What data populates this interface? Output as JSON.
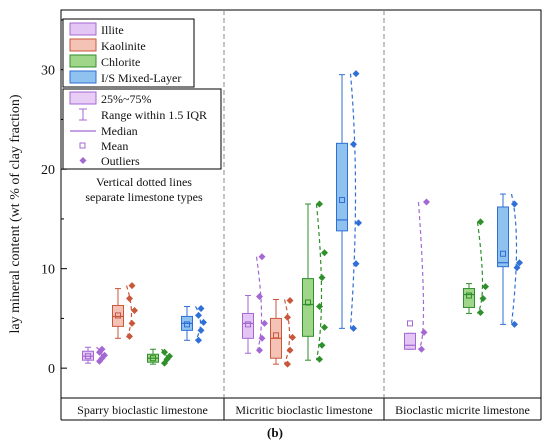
{
  "figure_label": "(b)",
  "chart_data": {
    "type": "box",
    "ylabel": "lay mineral content (wt % of clay fraction)",
    "ylim": [
      -3,
      36
    ],
    "yticks": [
      0,
      10,
      20,
      30
    ],
    "groups": [
      "Sparry bioclastic limestone",
      "Micritic bioclastic limestone",
      "Bioclastic micrite limestone"
    ],
    "series_legend": [
      {
        "name": "Illite",
        "fill": "#e3c6f3",
        "stroke": "#a468d4"
      },
      {
        "name": "Kaolinite",
        "fill": "#f5c3b6",
        "stroke": "#c9573b"
      },
      {
        "name": "Chlorite",
        "fill": "#9fd68a",
        "stroke": "#2f8f2a"
      },
      {
        "name": "I/S Mixed-Layer",
        "fill": "#8fc2ef",
        "stroke": "#2f6fd6"
      }
    ],
    "legend_items": {
      "box": "25%~75%",
      "whisker": "Range within 1.5 IQR",
      "median": "Median",
      "mean": "Mean",
      "outliers": "Outliers"
    },
    "annotation": [
      "Vertical dotted lines",
      "separate limestone types"
    ],
    "boxes": [
      {
        "group": 0,
        "series": 0,
        "q1": 0.8,
        "median": 1.2,
        "q3": 1.7,
        "mean": 1.2,
        "wlo": 0.5,
        "whi": 2.1,
        "points": [
          0.7,
          1.0,
          1.3,
          1.6,
          1.9
        ]
      },
      {
        "group": 0,
        "series": 1,
        "q1": 4.2,
        "median": 5.2,
        "q3": 6.3,
        "mean": 5.3,
        "wlo": 3.0,
        "whi": 8.0,
        "points": [
          3.2,
          4.5,
          5.8,
          7.0,
          8.3
        ]
      },
      {
        "group": 0,
        "series": 2,
        "q1": 0.6,
        "median": 1.0,
        "q3": 1.4,
        "mean": 1.0,
        "wlo": 0.4,
        "whi": 1.9,
        "points": [
          0.5,
          0.9,
          1.2,
          1.6
        ]
      },
      {
        "group": 0,
        "series": 3,
        "q1": 3.8,
        "median": 4.5,
        "q3": 5.2,
        "mean": 4.4,
        "wlo": 2.8,
        "whi": 6.2,
        "points": [
          2.8,
          3.8,
          4.6,
          5.3,
          6.0
        ]
      },
      {
        "group": 1,
        "series": 0,
        "q1": 3.0,
        "median": 4.5,
        "q3": 5.5,
        "mean": 4.4,
        "wlo": 1.5,
        "whi": 7.3,
        "points": [
          1.8,
          3.0,
          4.5,
          7.2,
          11.2
        ]
      },
      {
        "group": 1,
        "series": 1,
        "q1": 1.0,
        "median": 3.0,
        "q3": 5.0,
        "mean": 3.3,
        "wlo": 0.4,
        "whi": 6.9,
        "points": [
          0.4,
          1.8,
          3.1,
          5.1,
          6.8
        ]
      },
      {
        "group": 1,
        "series": 2,
        "q1": 3.2,
        "median": 6.4,
        "q3": 9.0,
        "mean": 6.6,
        "wlo": 0.8,
        "whi": 16.5,
        "points": [
          0.9,
          2.3,
          4.1,
          6.2,
          9.1,
          11.6,
          16.5
        ]
      },
      {
        "group": 1,
        "series": 3,
        "q1": 13.8,
        "median": 14.9,
        "q3": 22.6,
        "mean": 16.9,
        "wlo": 4.0,
        "whi": 29.5,
        "points": [
          4.0,
          10.5,
          14.6,
          22.5,
          29.6
        ]
      },
      {
        "group": 2,
        "series": 0,
        "q1": 1.9,
        "median": 2.3,
        "q3": 3.5,
        "mean": 4.5,
        "wlo": 1.9,
        "whi": 3.5,
        "points": [
          1.9,
          3.6,
          16.7
        ]
      },
      {
        "group": 2,
        "series": 2,
        "q1": 6.1,
        "median": 7.4,
        "q3": 8.0,
        "mean": 7.3,
        "wlo": 5.5,
        "whi": 8.5,
        "points": [
          5.6,
          7.0,
          8.2,
          14.7
        ]
      },
      {
        "group": 2,
        "series": 3,
        "q1": 10.2,
        "median": 10.6,
        "q3": 16.2,
        "mean": 11.5,
        "wlo": 4.4,
        "whi": 17.5,
        "points": [
          4.4,
          10.1,
          10.6,
          16.5
        ]
      }
    ]
  }
}
